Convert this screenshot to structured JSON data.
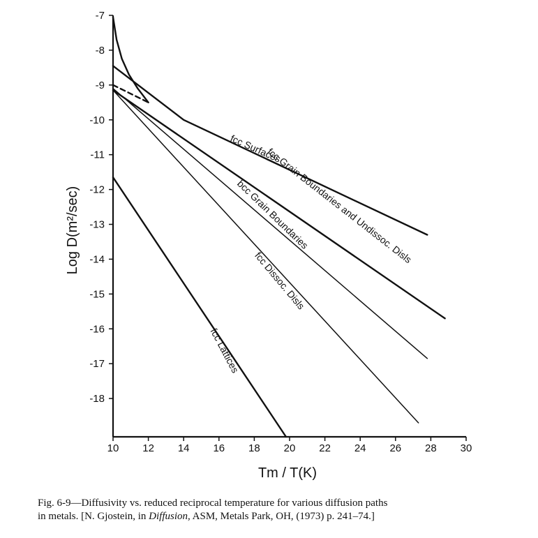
{
  "chart_data": {
    "type": "line",
    "title": "",
    "xlabel": "Tm / T(K)",
    "ylabel": "Log  D(m²/sec)",
    "xlim": [
      10,
      30
    ],
    "ylim": [
      -19.1,
      -7
    ],
    "xticks": [
      10,
      12,
      14,
      16,
      18,
      20,
      22,
      24,
      26,
      28,
      30
    ],
    "yticks": [
      -7,
      -8,
      -9,
      -10,
      -11,
      -12,
      -13,
      -14,
      -15,
      -16,
      -17,
      -18
    ],
    "grid": false,
    "legend": "none",
    "series": [
      {
        "name": "fcc Surfaces",
        "style": "solid",
        "weight": "heavy",
        "points": [
          [
            10,
            -8.45
          ],
          [
            14,
            -10.0
          ],
          [
            27.8,
            -13.3
          ]
        ],
        "label_at": [
          16.6,
          -10.6
        ],
        "label_angle": 24
      },
      {
        "name": "fcc Grain Boundaries and Undissoc. Disls",
        "style": "solid",
        "weight": "heavy",
        "points": [
          [
            10,
            -9.15
          ],
          [
            28.8,
            -15.7
          ]
        ],
        "label_at": [
          18.7,
          -10.95
        ],
        "label_angle": 38
      },
      {
        "name": "bcc Grain Boundaries",
        "style": "solid",
        "weight": "light",
        "points": [
          [
            10,
            -9.1
          ],
          [
            27.8,
            -16.85
          ]
        ],
        "label_at": [
          17.0,
          -11.85
        ],
        "label_angle": 44
      },
      {
        "name": "fcc Dissoc. Disls",
        "style": "solid",
        "weight": "light",
        "points": [
          [
            10,
            -9.15
          ],
          [
            27.3,
            -18.7
          ]
        ],
        "label_at": [
          18.0,
          -13.9
        ],
        "label_angle": 50
      },
      {
        "name": "fcc Lattices",
        "style": "solid",
        "weight": "heavy",
        "points": [
          [
            10,
            -11.65
          ],
          [
            19.8,
            -19.1
          ]
        ],
        "label_at": [
          15.5,
          -16.05
        ],
        "label_angle": 62
      },
      {
        "name": "",
        "style": "solid",
        "weight": "heavy",
        "points": [
          [
            10,
            -7.05
          ],
          [
            10.2,
            -7.7
          ],
          [
            10.5,
            -8.25
          ],
          [
            10.9,
            -8.7
          ],
          [
            11.4,
            -9.1
          ],
          [
            12.0,
            -9.5
          ]
        ]
      },
      {
        "name": "",
        "style": "dashed",
        "weight": "heavy",
        "points": [
          [
            10,
            -9.0
          ],
          [
            12.0,
            -9.5
          ]
        ]
      }
    ]
  },
  "caption": {
    "text1": "Fig. 6-9—Diffusivity vs. reduced reciprocal temperature for various diffusion paths",
    "text2": "in metals. [N. Gjostein, in",
    "book": "Diffusion",
    "text3": ", ASM, Metals Park, OH, (1973) p. 241–74.]"
  }
}
